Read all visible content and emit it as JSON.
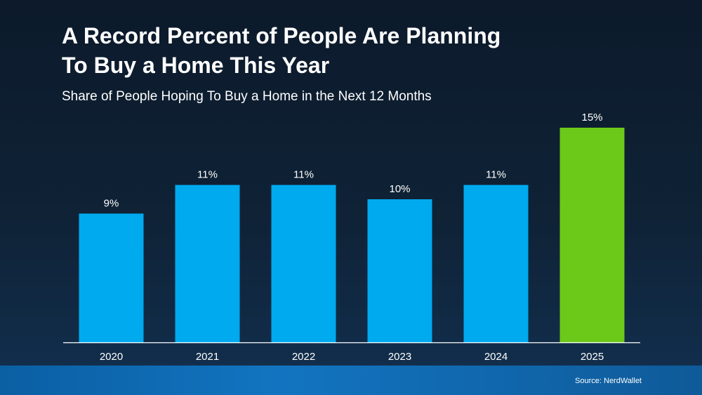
{
  "header": {
    "title": "A Record Percent of People Are Planning\nTo Buy a Home This Year",
    "subtitle": "Share of People Hoping To Buy a Home in the Next 12 Months"
  },
  "footer": {
    "source": "Source: NerdWallet"
  },
  "colors": {
    "bar_default": "#00aaef",
    "bar_highlight": "#6cc91a",
    "axis_line": "#ffffff",
    "text": "#ffffff"
  },
  "chart_data": {
    "type": "bar",
    "title": "A Record Percent of People Are Planning To Buy a Home This Year",
    "subtitle": "Share of People Hoping To Buy a Home in the Next 12 Months",
    "categories": [
      "2020",
      "2021",
      "2022",
      "2023",
      "2024",
      "2025"
    ],
    "values": [
      9,
      11,
      11,
      10,
      11,
      15
    ],
    "value_labels": [
      "9%",
      "11%",
      "11%",
      "10%",
      "11%",
      "15%"
    ],
    "highlight_index": 5,
    "xlabel": "",
    "ylabel": "",
    "ylim": [
      0,
      15
    ],
    "grid": false,
    "legend": "none"
  }
}
